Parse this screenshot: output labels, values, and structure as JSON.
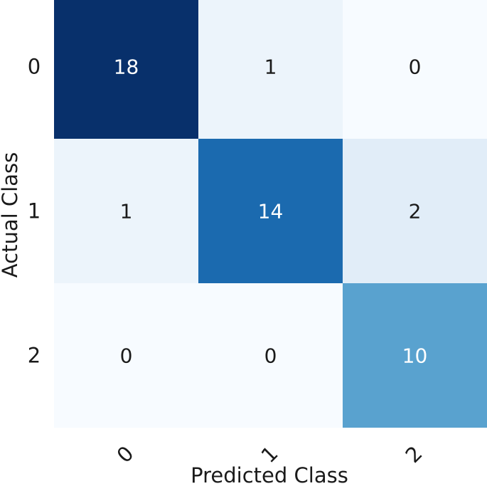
{
  "chart_data": {
    "type": "heatmap",
    "title": "",
    "xlabel": "Predicted Class",
    "ylabel": "Actual Class",
    "x_categories": [
      "0",
      "1",
      "2"
    ],
    "y_categories": [
      "0",
      "1",
      "2"
    ],
    "values": [
      [
        18,
        1,
        0
      ],
      [
        1,
        14,
        2
      ],
      [
        0,
        0,
        10
      ]
    ],
    "colormap": "Blues",
    "color_range": [
      0,
      18
    ],
    "legend": "none",
    "grid": false,
    "colors": {
      "light_text": "#ffffff",
      "dark_text": "#1a1a1a"
    }
  }
}
